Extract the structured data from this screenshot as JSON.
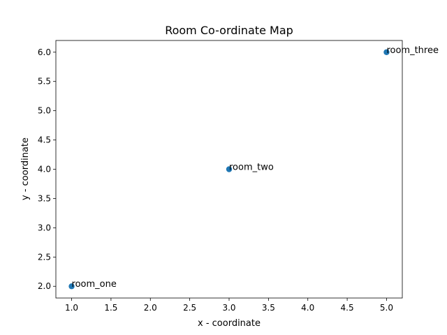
{
  "chart_data": {
    "type": "scatter",
    "title": "Room Co-ordinate Map",
    "xlabel": "x - coordinate",
    "ylabel": "y - coordinate",
    "xlim": [
      0.8,
      5.2
    ],
    "ylim": [
      1.8,
      6.2
    ],
    "xticks": [
      "1.0",
      "1.5",
      "2.0",
      "2.5",
      "3.0",
      "3.5",
      "4.0",
      "4.5",
      "5.0"
    ],
    "yticks": [
      "2.0",
      "2.5",
      "3.0",
      "3.5",
      "4.0",
      "4.5",
      "5.0",
      "5.5",
      "6.0"
    ],
    "grid": false,
    "point_color": "#1f77b4",
    "points": [
      {
        "label": "room_one",
        "x": 1.0,
        "y": 2.0
      },
      {
        "label": "room_two",
        "x": 3.0,
        "y": 4.0
      },
      {
        "label": "room_three",
        "x": 5.0,
        "y": 6.0
      }
    ]
  }
}
